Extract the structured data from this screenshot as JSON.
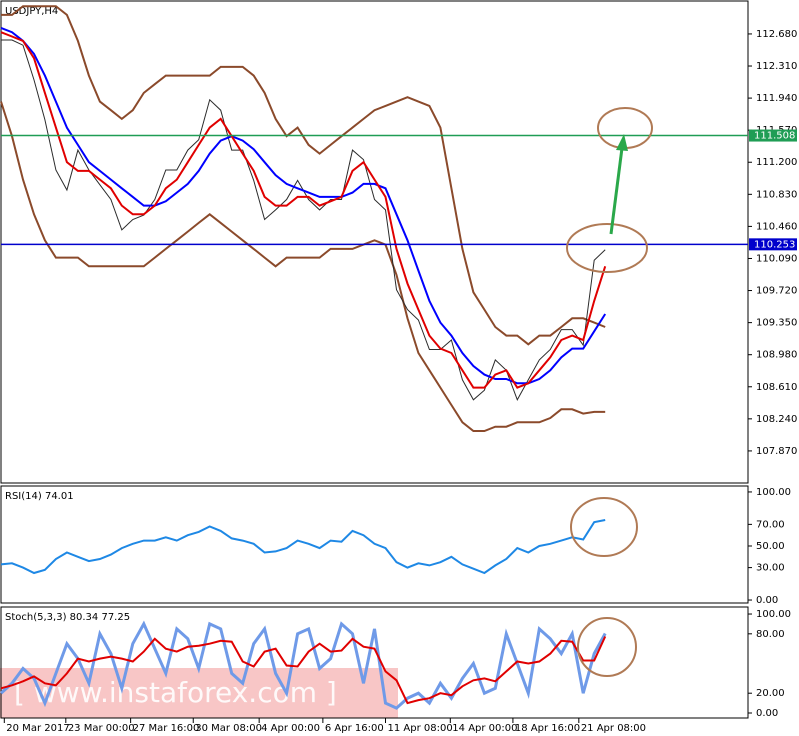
{
  "chart_data": [
    {
      "type": "line",
      "title": "USDJPY,H4",
      "x": [
        0,
        1,
        2,
        3,
        4,
        5,
        6,
        7,
        8,
        9,
        10,
        11,
        12,
        13,
        14,
        15,
        16,
        17,
        18,
        19,
        20,
        21,
        22,
        23,
        24,
        25,
        26,
        27,
        28,
        29,
        30,
        31,
        32,
        33,
        34,
        35,
        36,
        37,
        38,
        39,
        40,
        41,
        42,
        43,
        44,
        45,
        46,
        47,
        48,
        49,
        50,
        51,
        52,
        53,
        54,
        55
      ],
      "xlim": [
        0,
        68
      ],
      "ylim": [
        107.5,
        113.06
      ],
      "yticks": [
        {
          "value": 112.68,
          "label": "112.680"
        },
        {
          "value": 112.31,
          "label": "112.310"
        },
        {
          "value": 111.94,
          "label": "111.940"
        },
        {
          "value": 111.57,
          "label": "111.570"
        },
        {
          "value": 111.2,
          "label": "111.200"
        },
        {
          "value": 110.83,
          "label": "110.830"
        },
        {
          "value": 110.46,
          "label": "110.460"
        },
        {
          "value": 110.09,
          "label": "110.090"
        },
        {
          "value": 109.72,
          "label": "109.720"
        },
        {
          "value": 109.35,
          "label": "109.350"
        },
        {
          "value": 108.98,
          "label": "108.980"
        },
        {
          "value": 108.61,
          "label": "108.610"
        },
        {
          "value": 108.24,
          "label": "108.240"
        },
        {
          "value": 107.87,
          "label": "107.870"
        }
      ],
      "hlines": [
        {
          "value": 111.508,
          "color": "#1f9d55"
        },
        {
          "value": 110.253,
          "color": "#0000cc"
        }
      ],
      "series": [
        {
          "color": "#8b4a2b",
          "values": [
            112.9,
            112.9,
            113.0,
            113.0,
            113.0,
            113.0,
            112.9,
            112.6,
            112.2,
            111.9,
            111.8,
            111.7,
            111.8,
            112.0,
            112.1,
            112.2,
            112.2,
            112.2,
            112.2,
            112.2,
            112.3,
            112.3,
            112.3,
            112.2,
            112.0,
            111.7,
            111.5,
            111.6,
            111.4,
            111.3,
            111.4,
            111.5,
            111.6,
            111.7,
            111.8,
            111.85,
            111.9,
            111.95,
            111.9,
            111.85,
            111.6,
            110.9,
            110.2,
            109.7,
            109.5,
            109.3,
            109.2,
            109.2,
            109.1,
            109.2,
            109.2,
            109.3,
            109.4,
            109.4,
            109.35,
            109.3
          ]
        },
        {
          "color": "#8b4a2b",
          "values": [
            111.9,
            111.5,
            111.0,
            110.6,
            110.3,
            110.1,
            110.1,
            110.1,
            110.0,
            110.0,
            110.0,
            110.0,
            110.0,
            110.0,
            110.1,
            110.2,
            110.3,
            110.4,
            110.5,
            110.6,
            110.5,
            110.4,
            110.3,
            110.2,
            110.1,
            110.0,
            110.1,
            110.1,
            110.1,
            110.1,
            110.2,
            110.2,
            110.2,
            110.25,
            110.3,
            110.25,
            109.9,
            109.4,
            109.0,
            108.8,
            108.6,
            108.4,
            108.2,
            108.1,
            108.1,
            108.15,
            108.15,
            108.2,
            108.2,
            108.2,
            108.25,
            108.35,
            108.35,
            108.3,
            108.32,
            108.32
          ]
        },
        {
          "color": "#2b2b2b",
          "values": [
            112.61,
            112.61,
            112.55,
            112.15,
            111.69,
            111.11,
            110.88,
            111.34,
            111.11,
            110.94,
            110.77,
            110.42,
            110.54,
            110.59,
            110.77,
            111.11,
            111.11,
            111.34,
            111.46,
            111.92,
            111.8,
            111.34,
            111.34,
            110.99,
            110.54,
            110.65,
            110.77,
            110.99,
            110.77,
            110.65,
            110.77,
            110.77,
            111.34,
            111.23,
            110.77,
            110.65,
            109.73,
            109.5,
            109.38,
            109.04,
            109.04,
            109.15,
            108.69,
            108.46,
            108.57,
            108.92,
            108.8,
            108.46,
            108.69,
            108.92,
            109.04,
            109.27,
            109.27,
            109.09,
            110.07,
            110.19
          ]
        },
        {
          "color": "#0000ff",
          "values": [
            112.75,
            112.7,
            112.6,
            112.45,
            112.2,
            111.9,
            111.6,
            111.4,
            111.2,
            111.1,
            111.0,
            110.9,
            110.8,
            110.7,
            110.7,
            110.75,
            110.85,
            110.95,
            111.1,
            111.3,
            111.45,
            111.5,
            111.45,
            111.35,
            111.2,
            111.05,
            110.95,
            110.9,
            110.85,
            110.8,
            110.8,
            110.8,
            110.85,
            110.95,
            110.95,
            110.9,
            110.6,
            110.3,
            109.95,
            109.6,
            109.35,
            109.2,
            109.0,
            108.85,
            108.75,
            108.7,
            108.7,
            108.65,
            108.65,
            108.7,
            108.8,
            108.95,
            109.05,
            109.05,
            109.25,
            109.45
          ]
        },
        {
          "color": "#e00000",
          "values": [
            112.7,
            112.65,
            112.6,
            112.4,
            112.0,
            111.6,
            111.2,
            111.1,
            111.1,
            111.0,
            110.9,
            110.7,
            110.6,
            110.6,
            110.7,
            110.9,
            111.0,
            111.2,
            111.4,
            111.6,
            111.7,
            111.5,
            111.3,
            111.1,
            110.8,
            110.7,
            110.7,
            110.8,
            110.8,
            110.7,
            110.75,
            110.8,
            111.1,
            111.2,
            111.0,
            110.8,
            110.2,
            109.8,
            109.5,
            109.2,
            109.05,
            109.0,
            108.8,
            108.6,
            108.6,
            108.75,
            108.8,
            108.6,
            108.65,
            108.8,
            108.95,
            109.15,
            109.2,
            109.15,
            109.6,
            110.0
          ]
        }
      ]
    },
    {
      "type": "line",
      "title": "RSI(14) 74.01",
      "ylim": [
        -2.75,
        105.5
      ],
      "yticks": [
        {
          "value": 100,
          "label": "100.00"
        },
        {
          "value": 70,
          "label": "70.00"
        },
        {
          "value": 50,
          "label": "50.00"
        },
        {
          "value": 30,
          "label": "30.00"
        },
        {
          "value": 0,
          "label": "0.00"
        }
      ],
      "series": [
        {
          "color": "#1e88e5",
          "values": [
            33,
            34,
            30,
            25,
            28,
            38,
            44,
            40,
            36,
            38,
            42,
            48,
            52,
            55,
            55,
            58,
            55,
            60,
            63,
            68,
            64,
            57,
            55,
            52,
            44,
            45,
            48,
            55,
            52,
            48,
            55,
            54,
            64,
            60,
            52,
            48,
            35,
            30,
            34,
            32,
            35,
            40,
            33,
            29,
            25,
            32,
            38,
            48,
            44,
            50,
            52,
            55,
            58,
            56,
            72,
            74.01
          ]
        }
      ]
    },
    {
      "type": "line",
      "title": "Stoch(5,3,3) 80.34 77.25",
      "ylim": [
        -5.05,
        107.1
      ],
      "yticks": [
        {
          "value": 100,
          "label": "100.00"
        },
        {
          "value": 80,
          "label": "80.00"
        },
        {
          "value": 20,
          "label": "20.00"
        },
        {
          "value": 0,
          "label": "0.00"
        }
      ],
      "xticks": [
        {
          "value": 0.3,
          "label": "20 Mar 2017"
        },
        {
          "value": 5.9,
          "label": "23 Mar 00:00"
        },
        {
          "value": 11.8,
          "label": "27 Mar 16:00"
        },
        {
          "value": 17.5,
          "label": "30 Mar 08:00"
        },
        {
          "value": 23.5,
          "label": "4 Apr 00:00"
        },
        {
          "value": 29.3,
          "label": "6 Apr 16:00"
        },
        {
          "value": 35,
          "label": "11 Apr 08:00"
        },
        {
          "value": 40.9,
          "label": "14 Apr 00:00"
        },
        {
          "value": 46.6,
          "label": "18 Apr 16:00"
        },
        {
          "value": 52.6,
          "label": "21 Apr 08:00"
        }
      ],
      "series": [
        {
          "color": "#6f9ae8",
          "values": [
            20,
            30,
            45,
            35,
            10,
            40,
            70,
            55,
            30,
            80,
            60,
            25,
            70,
            90,
            65,
            40,
            85,
            75,
            45,
            90,
            85,
            40,
            30,
            70,
            85,
            40,
            20,
            80,
            85,
            45,
            55,
            90,
            80,
            30,
            85,
            10,
            5,
            15,
            20,
            10,
            30,
            15,
            35,
            50,
            20,
            25,
            80,
            50,
            20,
            85,
            75,
            60,
            80,
            20,
            60,
            80.34
          ]
        },
        {
          "color": "#e00000",
          "values": [
            25,
            28,
            32,
            37,
            30,
            28,
            40,
            55,
            52,
            55,
            57,
            55,
            52,
            62,
            75,
            65,
            62,
            67,
            68,
            70,
            73,
            72,
            52,
            47,
            62,
            65,
            48,
            47,
            62,
            70,
            62,
            63,
            75,
            67,
            65,
            42,
            33,
            10,
            13,
            15,
            20,
            18,
            27,
            33,
            35,
            32,
            42,
            52,
            50,
            52,
            60,
            73,
            72,
            53,
            53,
            77.25
          ]
        }
      ]
    }
  ],
  "watermark": "[ www.instaforex.com ]"
}
